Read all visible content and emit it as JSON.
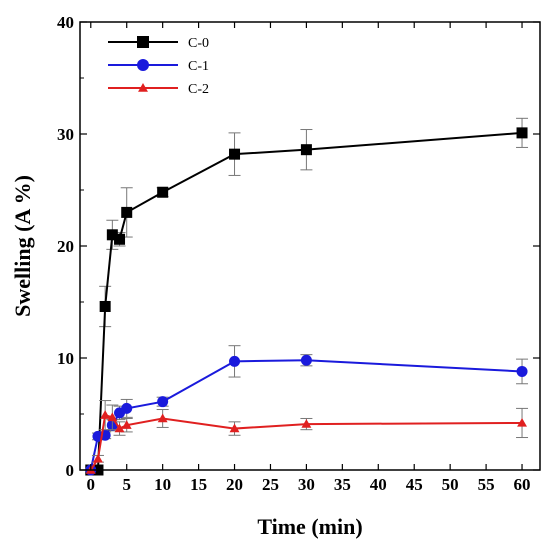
{
  "chart_data": {
    "type": "line",
    "xlabel": "Time (min)",
    "ylabel": "Swelling (A %)",
    "xlim": [
      -1.5,
      62.5
    ],
    "ylim": [
      0,
      40
    ],
    "x_ticks": [
      "0",
      "5",
      "10",
      "15",
      "20",
      "25",
      "30",
      "35",
      "40",
      "45",
      "50",
      "55",
      "60"
    ],
    "y_ticks": [
      "0",
      "10",
      "20",
      "30",
      "40"
    ],
    "grid": false,
    "legend_position": "top-left",
    "series": [
      {
        "name": "C-0",
        "color": "#000000",
        "marker": "square",
        "x": [
          0,
          1,
          2,
          3,
          4,
          5,
          10,
          20,
          30,
          60
        ],
        "y": [
          0,
          0,
          14.6,
          21.0,
          20.6,
          23.0,
          24.8,
          28.2,
          28.6,
          30.1
        ],
        "err": [
          0,
          0,
          1.8,
          1.3,
          0.6,
          2.2,
          0.4,
          1.9,
          1.8,
          1.3
        ]
      },
      {
        "name": "C-1",
        "color": "#1a1adc",
        "marker": "circle",
        "x": [
          0,
          1,
          2,
          3,
          4,
          5,
          10,
          20,
          30,
          60
        ],
        "y": [
          0,
          3.0,
          3.1,
          4.0,
          5.1,
          5.5,
          6.1,
          9.7,
          9.8,
          8.8
        ],
        "err": [
          0,
          0.3,
          0.3,
          0.5,
          0.6,
          0.8,
          0.4,
          1.4,
          0.5,
          1.1
        ]
      },
      {
        "name": "C-2",
        "color": "#e02020",
        "marker": "triangle",
        "x": [
          0,
          1,
          2,
          3,
          4,
          5,
          10,
          20,
          30,
          60
        ],
        "y": [
          0,
          1.0,
          4.9,
          4.7,
          3.7,
          4.0,
          4.6,
          3.7,
          4.1,
          4.2
        ],
        "err": [
          0,
          0.3,
          1.3,
          1.1,
          0.6,
          0.6,
          0.8,
          0.6,
          0.5,
          1.3
        ]
      }
    ]
  }
}
